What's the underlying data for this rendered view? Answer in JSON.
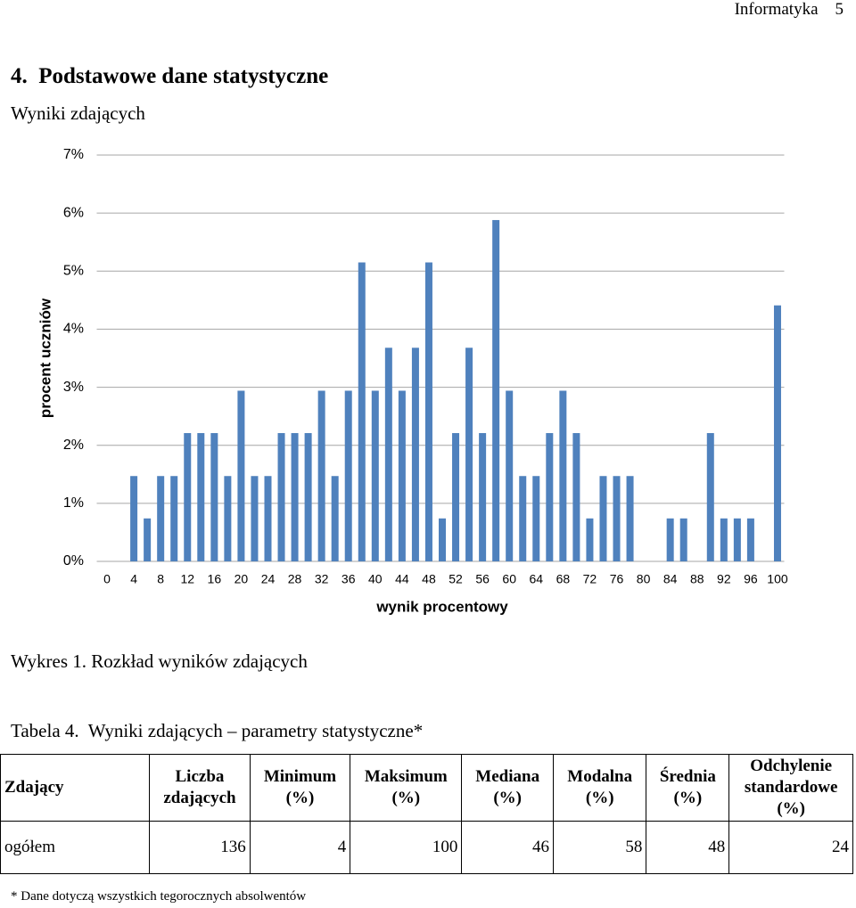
{
  "header": {
    "subject": "Informatyka",
    "page": 5
  },
  "section_title": "4.  Podstawowe dane statystyczne",
  "subtitle": "Wyniki zdających",
  "chart_data": {
    "type": "bar",
    "ylabel": "procent uczniów",
    "xlabel": "wynik procentowy",
    "categories": [
      "0",
      null,
      "4",
      null,
      "8",
      null,
      "12",
      null,
      "16",
      null,
      "20",
      null,
      "24",
      null,
      "28",
      null,
      "32",
      null,
      "36",
      null,
      "40",
      null,
      "44",
      null,
      "48",
      null,
      "52",
      null,
      "56",
      null,
      "60",
      null,
      "64",
      null,
      "68",
      null,
      "72",
      null,
      "76",
      null,
      "80",
      null,
      "84",
      null,
      "88",
      null,
      "92",
      null,
      "96",
      null,
      "100"
    ],
    "values": [
      0,
      0,
      1.47,
      0.74,
      1.47,
      1.47,
      2.21,
      2.21,
      2.21,
      1.47,
      2.94,
      1.47,
      1.47,
      2.21,
      2.21,
      2.21,
      2.94,
      1.47,
      2.94,
      5.15,
      2.94,
      3.68,
      2.94,
      3.68,
      5.15,
      0.74,
      2.21,
      3.68,
      2.21,
      5.88,
      2.94,
      1.47,
      1.47,
      2.21,
      2.94,
      2.21,
      0.74,
      1.47,
      1.47,
      1.47,
      0,
      0,
      0.74,
      0.74,
      0,
      2.21,
      0.74,
      0.74,
      0.74,
      0,
      4.41
    ],
    "color": "#4f81bd",
    "ylim": [
      0,
      7
    ],
    "yticks": [
      {
        "value": 0,
        "label": "0%"
      },
      {
        "value": 1,
        "label": "1%"
      },
      {
        "value": 2,
        "label": "2%"
      },
      {
        "value": 3,
        "label": "3%"
      },
      {
        "value": 4,
        "label": "4%"
      },
      {
        "value": 5,
        "label": "5%"
      },
      {
        "value": 6,
        "label": "6%"
      },
      {
        "value": 7,
        "label": "7%"
      }
    ],
    "grid": true
  },
  "figure_caption": "Wykres 1. Rozkład wyników zdających",
  "table": {
    "caption": "Tabela 4.  Wyniki zdających – parametry statystyczne*",
    "columns": [
      "Zdający",
      "Liczba zdających",
      "Minimum (%)",
      "Maksimum (%)",
      "Mediana (%)",
      "Modalna (%)",
      "Średnia (%)",
      "Odchylenie standardowe (%)"
    ],
    "rows": [
      [
        "ogółem",
        136,
        4,
        100,
        46,
        58,
        48,
        24
      ]
    ]
  },
  "footnote": "* Dane dotyczą wszystkich tegorocznych absolwentów"
}
